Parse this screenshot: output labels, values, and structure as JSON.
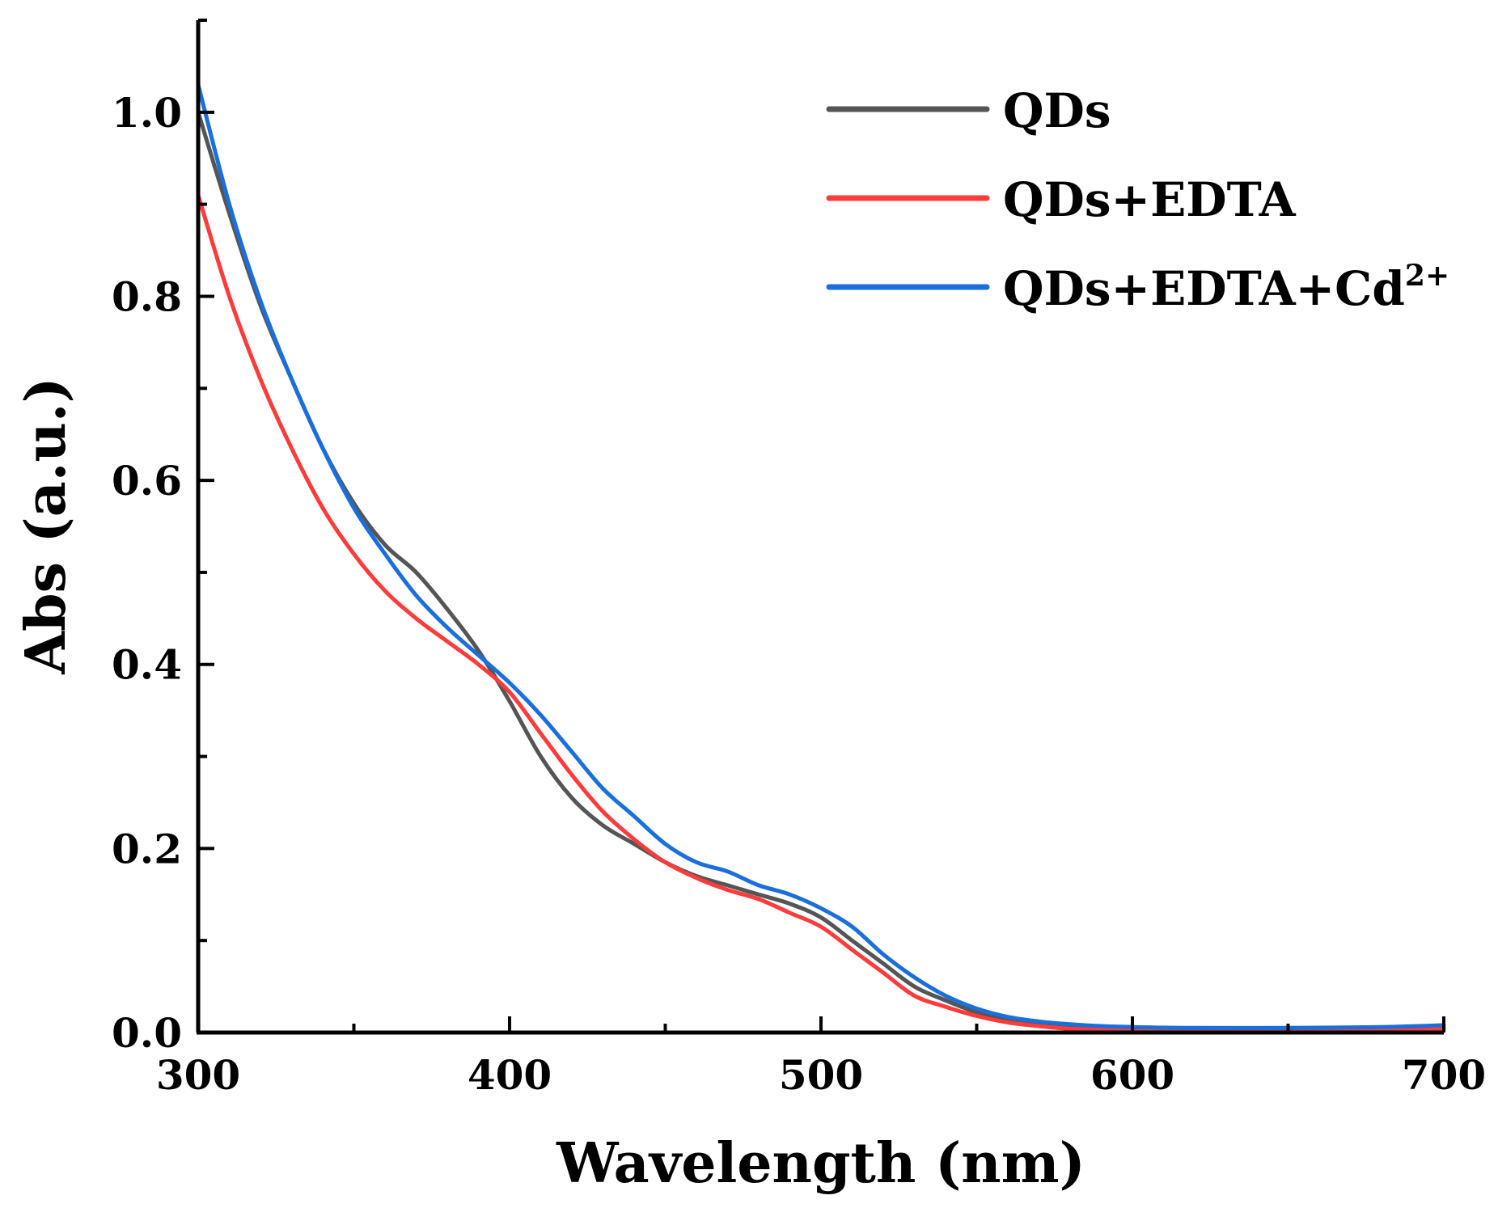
{
  "chart_data": {
    "type": "line",
    "title": "",
    "xlabel": "Wavelength (nm)",
    "ylabel": "Abs (a.u.)",
    "xlim": [
      300,
      700
    ],
    "ylim": [
      0.0,
      1.1
    ],
    "x_ticks": [
      300,
      400,
      500,
      600,
      700
    ],
    "x_tick_labels": [
      "300",
      "400",
      "500",
      "600",
      "700"
    ],
    "y_ticks": [
      0.0,
      0.2,
      0.4,
      0.6,
      0.8,
      1.0
    ],
    "y_tick_labels": [
      "0.0",
      "0.2",
      "0.4",
      "0.6",
      "0.8",
      "1.0"
    ],
    "grid": false,
    "legend_position": "top-right",
    "series": [
      {
        "name": "QDs",
        "legend_main": "QDs",
        "legend_sup": "",
        "color": "#555555",
        "x": [
          300,
          310,
          320,
          330,
          340,
          350,
          360,
          370,
          380,
          390,
          400,
          410,
          420,
          430,
          440,
          450,
          460,
          470,
          480,
          490,
          500,
          510,
          520,
          530,
          540,
          550,
          560,
          570,
          580,
          590,
          600,
          620,
          650,
          680,
          700
        ],
        "values": [
          1.0,
          0.89,
          0.79,
          0.71,
          0.635,
          0.575,
          0.53,
          0.5,
          0.46,
          0.415,
          0.36,
          0.3,
          0.255,
          0.225,
          0.205,
          0.185,
          0.17,
          0.16,
          0.15,
          0.14,
          0.125,
          0.1,
          0.075,
          0.05,
          0.035,
          0.022,
          0.014,
          0.01,
          0.007,
          0.005,
          0.004,
          0.003,
          0.003,
          0.004,
          0.005
        ]
      },
      {
        "name": "QDs+EDTA",
        "legend_main": "QDs+EDTA",
        "legend_sup": "",
        "color": "#ff3b3b",
        "x": [
          300,
          310,
          320,
          330,
          340,
          350,
          360,
          370,
          380,
          390,
          400,
          410,
          420,
          430,
          440,
          450,
          460,
          470,
          480,
          490,
          500,
          510,
          520,
          530,
          540,
          550,
          560,
          570,
          580,
          590,
          600,
          620,
          650,
          680,
          700
        ],
        "values": [
          0.91,
          0.8,
          0.71,
          0.635,
          0.57,
          0.52,
          0.48,
          0.45,
          0.425,
          0.4,
          0.37,
          0.325,
          0.28,
          0.24,
          0.21,
          0.185,
          0.168,
          0.155,
          0.145,
          0.13,
          0.115,
          0.09,
          0.065,
          0.04,
          0.028,
          0.018,
          0.011,
          0.007,
          0.004,
          0.003,
          0.002,
          0.002,
          0.002,
          0.003,
          0.004
        ]
      },
      {
        "name": "QDs+EDTA+Cd2+",
        "legend_main": "QDs+EDTA+Cd",
        "legend_sup": "2+",
        "color": "#1a6fdc",
        "x": [
          300,
          310,
          320,
          330,
          340,
          350,
          360,
          370,
          380,
          390,
          400,
          410,
          420,
          430,
          440,
          450,
          460,
          470,
          480,
          490,
          500,
          510,
          520,
          530,
          540,
          550,
          560,
          570,
          580,
          590,
          600,
          620,
          650,
          680,
          700
        ],
        "values": [
          1.03,
          0.9,
          0.795,
          0.71,
          0.635,
          0.57,
          0.52,
          0.475,
          0.44,
          0.41,
          0.38,
          0.345,
          0.305,
          0.265,
          0.235,
          0.205,
          0.185,
          0.175,
          0.16,
          0.15,
          0.135,
          0.115,
          0.085,
          0.06,
          0.04,
          0.026,
          0.017,
          0.012,
          0.009,
          0.007,
          0.006,
          0.005,
          0.005,
          0.006,
          0.008
        ]
      }
    ]
  }
}
